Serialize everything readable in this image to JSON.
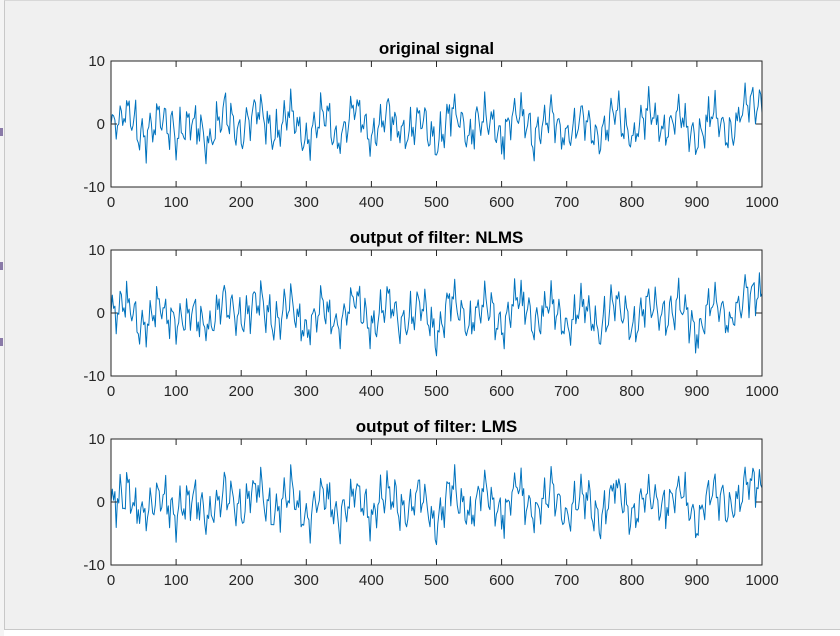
{
  "chart_data": [
    {
      "type": "line",
      "title": "original signal",
      "xlim": [
        0,
        1000
      ],
      "ylim": [
        -10,
        10
      ],
      "x_ticks": [
        0,
        100,
        200,
        300,
        400,
        500,
        600,
        700,
        800,
        900,
        1000
      ],
      "y_ticks": [
        -10,
        0,
        10
      ],
      "x_tick_labels": [
        "0",
        "100",
        "200",
        "300",
        "400",
        "500",
        "600",
        "700",
        "800",
        "900",
        "1000"
      ],
      "y_tick_labels": [
        "-10",
        "0",
        "10"
      ],
      "grid": false,
      "series": [
        {
          "color": "#0072bd",
          "x": [
            0,
            25,
            50,
            75,
            100,
            125,
            150,
            175,
            200,
            225,
            250,
            275,
            300,
            325,
            350,
            375,
            400,
            425,
            450,
            475,
            500,
            525,
            550,
            575,
            600,
            625,
            650,
            675,
            700,
            725,
            750,
            775,
            800,
            825,
            850,
            875,
            900,
            925,
            950,
            975,
            1000
          ],
          "y": [
            -1,
            4,
            -5,
            3,
            -4,
            2,
            -6,
            4,
            -3,
            5,
            -4,
            4,
            -6,
            3,
            -5,
            5,
            -5,
            4,
            -4,
            3,
            -7,
            5,
            -4,
            4,
            -5,
            5,
            -4,
            4,
            -5,
            3,
            -6,
            5,
            -5,
            4,
            -3,
            4,
            -6,
            5,
            -4,
            6,
            5
          ]
        }
      ]
    },
    {
      "type": "line",
      "title": "output of filter: NLMS",
      "xlim": [
        0,
        1000
      ],
      "ylim": [
        -10,
        10
      ],
      "x_ticks": [
        0,
        100,
        200,
        300,
        400,
        500,
        600,
        700,
        800,
        900,
        1000
      ],
      "y_ticks": [
        -10,
        0,
        10
      ],
      "x_tick_labels": [
        "0",
        "100",
        "200",
        "300",
        "400",
        "500",
        "600",
        "700",
        "800",
        "900",
        "1000"
      ],
      "y_tick_labels": [
        "-10",
        "0",
        "10"
      ],
      "grid": false,
      "series": [
        {
          "color": "#0072bd",
          "x": [
            0,
            25,
            50,
            75,
            100,
            125,
            150,
            175,
            200,
            225,
            250,
            275,
            300,
            325,
            350,
            375,
            400,
            425,
            450,
            475,
            500,
            525,
            550,
            575,
            600,
            625,
            650,
            675,
            700,
            725,
            750,
            775,
            800,
            825,
            850,
            875,
            900,
            925,
            950,
            975,
            1000
          ],
          "y": [
            -1,
            3,
            -5,
            3,
            -4,
            2,
            -5,
            4,
            -3,
            5,
            -4,
            4,
            -6,
            3,
            -5,
            5,
            -5,
            4,
            -4,
            3,
            -7,
            5,
            -4,
            4,
            -5,
            5,
            -4,
            4,
            -5,
            3,
            -6,
            5,
            -5,
            3,
            -2,
            4,
            -6,
            5,
            -4,
            6,
            5
          ]
        }
      ]
    },
    {
      "type": "line",
      "title": "output of filter: LMS",
      "xlim": [
        0,
        1000
      ],
      "ylim": [
        -10,
        10
      ],
      "x_ticks": [
        0,
        100,
        200,
        300,
        400,
        500,
        600,
        700,
        800,
        900,
        1000
      ],
      "y_ticks": [
        -10,
        0,
        10
      ],
      "x_tick_labels": [
        "0",
        "100",
        "200",
        "300",
        "400",
        "500",
        "600",
        "700",
        "800",
        "900",
        "1000"
      ],
      "y_tick_labels": [
        "-10",
        "0",
        "10"
      ],
      "grid": false,
      "series": [
        {
          "color": "#0072bd",
          "x": [
            0,
            25,
            50,
            75,
            100,
            125,
            150,
            175,
            200,
            225,
            250,
            275,
            300,
            325,
            350,
            375,
            400,
            425,
            450,
            475,
            500,
            525,
            550,
            575,
            600,
            625,
            650,
            675,
            700,
            725,
            750,
            775,
            800,
            825,
            850,
            875,
            900,
            925,
            950,
            975,
            1000
          ],
          "y": [
            -1,
            3,
            -5,
            3,
            -4,
            2,
            -5,
            4,
            -3,
            5,
            -4,
            4,
            -6,
            3,
            -5,
            5,
            -5,
            4,
            -4,
            3,
            -7,
            5,
            -4,
            4,
            -5,
            5,
            -4,
            4,
            -5,
            3,
            -6,
            5,
            -5,
            3,
            -2,
            4,
            -6,
            5,
            -4,
            6,
            5
          ]
        }
      ]
    }
  ],
  "window": {
    "background": "#f0f0f0",
    "axes_background": "#ffffff",
    "axes_color": "#262626"
  }
}
